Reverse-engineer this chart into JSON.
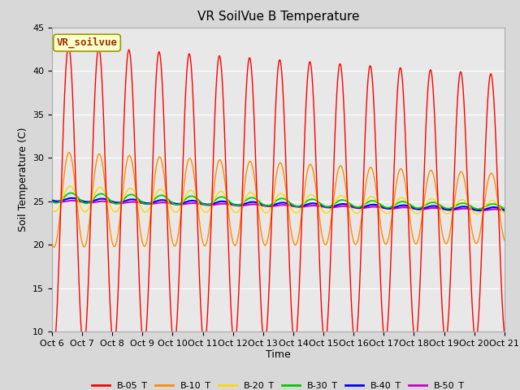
{
  "title": "VR SoilVue B Temperature",
  "xlabel": "Time",
  "ylabel": "Soil Temperature (C)",
  "ylim": [
    10,
    45
  ],
  "series_colors": {
    "B-05_T": "#ff0000",
    "B-10_T": "#ff8c00",
    "B-20_T": "#ffd700",
    "B-30_T": "#00cc00",
    "B-40_T": "#0000ff",
    "B-50_T": "#cc00cc"
  },
  "series_order": [
    "B-05_T",
    "B-10_T",
    "B-20_T",
    "B-30_T",
    "B-40_T",
    "B-50_T"
  ],
  "xtick_labels": [
    "Oct 6",
    "Oct 7",
    "Oct 8",
    "Oct 9",
    "Oct 10",
    "Oct 11",
    "Oct 12",
    "Oct 13",
    "Oct 14",
    "Oct 15",
    "Oct 16",
    "Oct 17",
    "Oct 18",
    "Oct 19",
    "Oct 20",
    "Oct 21"
  ],
  "annotation_text": "VR_soilvue",
  "annotation_box_facecolor": "#ffffcc",
  "annotation_box_edgecolor": "#999900",
  "annotation_text_color": "#993300",
  "background_color": "#d8d8d8",
  "plot_bg_color": "#e8e8e8",
  "grid_color": "#ffffff",
  "title_fontsize": 11,
  "label_fontsize": 9,
  "tick_fontsize": 8,
  "legend_fontsize": 8,
  "line_width": 1.0
}
